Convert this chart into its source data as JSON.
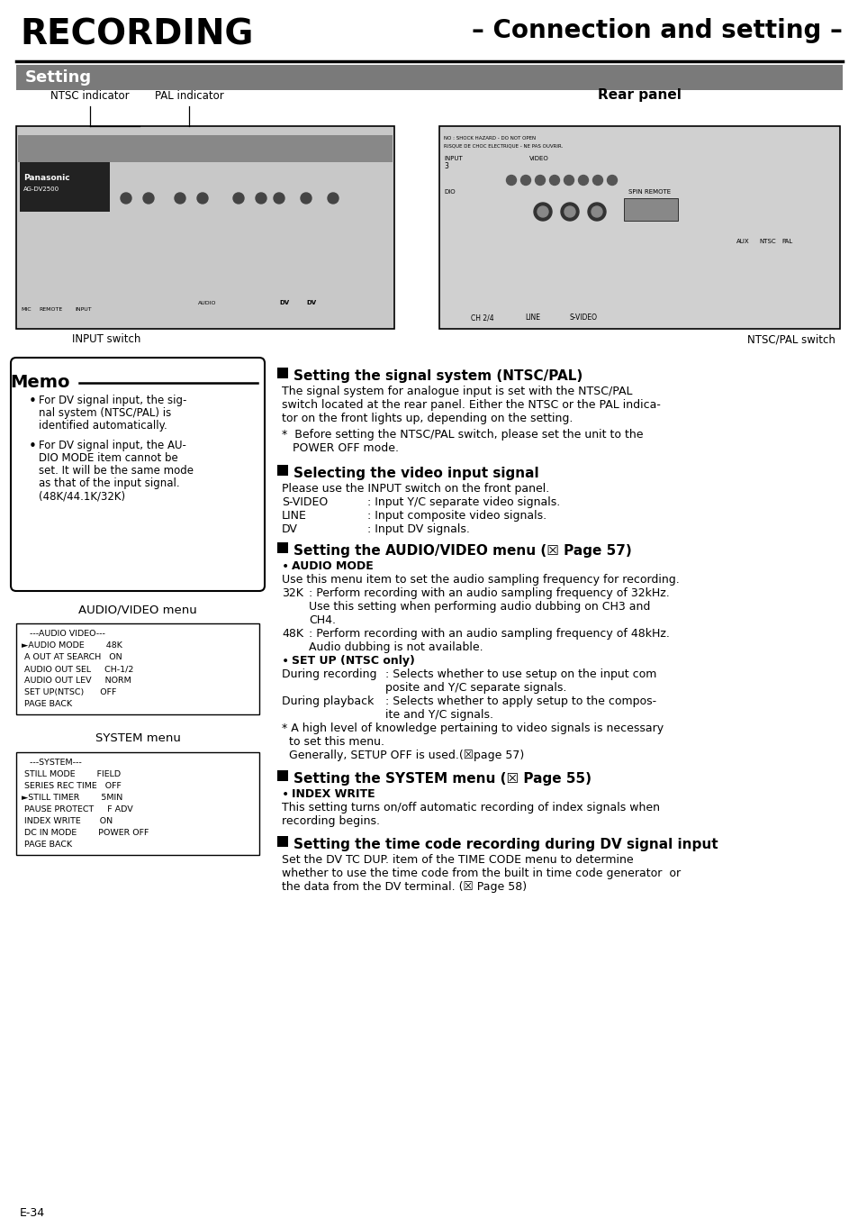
{
  "title_left": "RECORDING",
  "title_right": "– Connection and setting –",
  "setting_bar": "Setting",
  "page_num": "E-34",
  "bg_color": "#ffffff",
  "bar_color": "#7a7a7a",
  "bar_text_color": "#ffffff",
  "memo_title": "Memo",
  "rear_panel_label": "Rear panel",
  "ntsc_indicator_label": "NTSC indicator",
  "pal_indicator_label": "PAL indicator",
  "input_switch_label": "INPUT switch",
  "ntscpal_switch_label": "NTSC/PAL switch",
  "audio_video_menu_label": "AUDIO/VIDEO menu",
  "audio_video_menu_lines": [
    "   ---AUDIO VIDEO---",
    "►AUDIO MODE        48K",
    " A OUT AT SEARCH   ON",
    " AUDIO OUT SEL     CH-1/2",
    " AUDIO OUT LEV     NORM",
    " SET UP(NTSC)      OFF",
    " PAGE BACK"
  ],
  "system_menu_label": "SYSTEM menu",
  "system_menu_lines": [
    "   ---SYSTEM---",
    " STILL MODE        FIELD",
    " SERIES REC TIME   OFF",
    "►STILL TIMER        5MIN",
    " PAUSE PROTECT     F ADV",
    " INDEX WRITE       ON",
    " DC IN MODE        POWER OFF",
    " PAGE BACK"
  ],
  "s1_heading": "Setting the signal system (NTSC/PAL)",
  "s1_body_lines": [
    "The signal system for analogue input is set with the NTSC/PAL",
    "switch located at the rear panel. Either the NTSC or the PAL indica-",
    "tor on the front lights up, depending on the setting."
  ],
  "s1_note_lines": [
    "*  Before setting the NTSC/PAL switch, please set the unit to the",
    "   POWER OFF mode."
  ],
  "s2_heading": "Selecting the video input signal",
  "s2_body": "Please use the INPUT switch on the front panel.",
  "s2_items": [
    [
      "S-VIDEO",
      ": Input Y/C separate video signals."
    ],
    [
      "LINE",
      ": Input composite video signals."
    ],
    [
      "DV",
      ": Input DV signals."
    ]
  ],
  "s3_heading": "Setting the AUDIO/VIDEO menu (☒ Page 57)",
  "s3_sub1": "AUDIO MODE",
  "s3_sub1_body": "Use this menu item to set the audio sampling frequency for recording.",
  "s3_sub1_items": [
    [
      "32K",
      ": Perform recording with an audio sampling frequency of 32kHz.",
      "  Use this setting when performing audio dubbing on CH3 and",
      "  CH4."
    ],
    [
      "48K",
      ": Perform recording with an audio sampling frequency of 48kHz.",
      "  Audio dubbing is not available."
    ]
  ],
  "s3_sub2": "SET UP (NTSC only)",
  "s3_sub2_lines": [
    [
      "During recording",
      ": Selects whether to use setup on the input com",
      "  posite and Y/C separate signals."
    ],
    [
      "During playback",
      ": Selects whether to apply setup to the compos-",
      "  ite and Y/C signals."
    ]
  ],
  "s3_note_lines": [
    "* A high level of knowledge pertaining to video signals is necessary",
    "  to set this menu.",
    "  Generally, SETUP OFF is used.(☒page 57)"
  ],
  "s4_heading": "Setting the SYSTEM menu (☒ Page 55)",
  "s4_sub1": "INDEX WRITE",
  "s4_sub1_lines": [
    "This setting turns on/off automatic recording of index signals when",
    "recording begins."
  ],
  "s5_heading": "Setting the time code recording during DV signal input",
  "s5_body_lines": [
    "Set the DV TC DUP. item of the TIME CODE menu to determine",
    "whether to use the time code from the built in time code generator  or",
    "the data from the DV terminal. (☒ Page 58)"
  ]
}
